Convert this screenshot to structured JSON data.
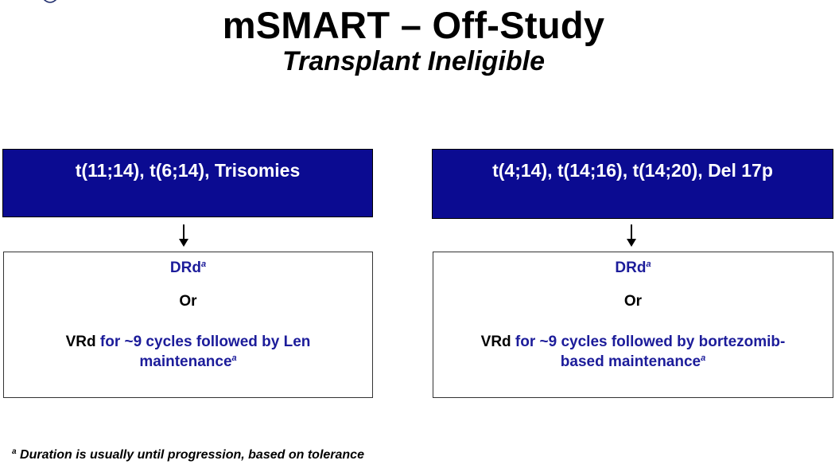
{
  "title": "mSMART – Off-Study",
  "subtitle": "Transplant Ineligible",
  "columns": [
    {
      "header": "t(11;14), t(6;14), Trisomies",
      "regimen1": "DRd",
      "regimen1_sup": "a",
      "or_text": "Or",
      "regimen2_name": "VRd",
      "regimen2_line1": " for ~9 cycles followed by Len",
      "regimen2_line2": "maintenance",
      "regimen2_sup": "a"
    },
    {
      "header": "t(4;14), t(14;16), t(14;20), Del 17p",
      "regimen1": "DRd",
      "regimen1_sup": "a",
      "or_text": "Or",
      "regimen2_name": "VRd",
      "regimen2_line1": " for ~9 cycles followed by bortezomib-",
      "regimen2_line2": "based maintenance",
      "regimen2_sup": "a"
    }
  ],
  "footnote": {
    "marker": "a",
    "text": " Duration is usually until progression, based on tolerance"
  },
  "colors": {
    "header_bg": "#0b0b91",
    "regimen_blue": "#1c1c9a"
  },
  "icons": {
    "logo": "shield-logo-icon",
    "arrow": "arrow-down-icon"
  }
}
